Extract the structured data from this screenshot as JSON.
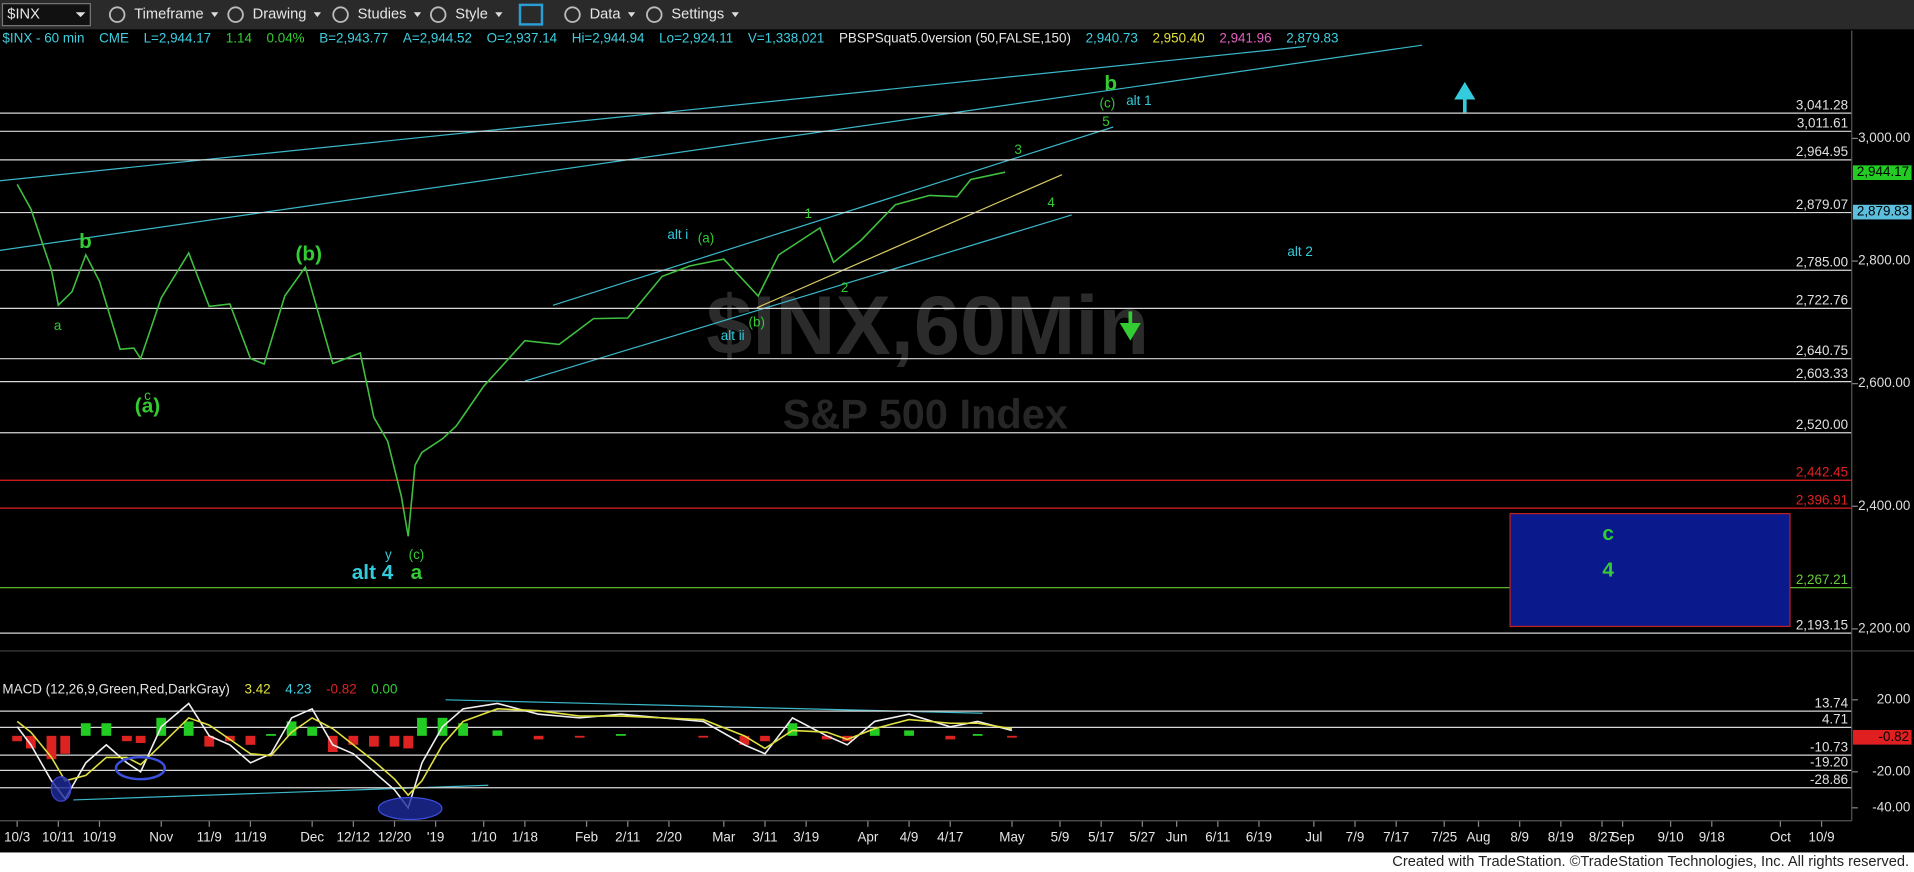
{
  "toolbar": {
    "symbol": "$INX",
    "menus": [
      "Timeframe",
      "Drawing",
      "Studies",
      "Style",
      "Data",
      "Settings"
    ]
  },
  "chart_data": [
    {
      "type": "line",
      "watermark": "$INX,60Min",
      "subtitle": "S&P 500 Index",
      "header": [
        {
          "text": "$INX - 60 min",
          "color": "#3ecfe0"
        },
        {
          "text": "CME",
          "color": "#3ecfe0"
        },
        {
          "text": "L=2,944.17",
          "color": "#3ecfe0"
        },
        {
          "text": "1.14",
          "color": "#33cc33"
        },
        {
          "text": "0.04%",
          "color": "#33cc33"
        },
        {
          "text": "B=2,943.77",
          "color": "#3ecfe0"
        },
        {
          "text": "A=2,944.52",
          "color": "#3ecfe0"
        },
        {
          "text": "O=2,937.14",
          "color": "#3ecfe0"
        },
        {
          "text": "Hi=2,944.94",
          "color": "#3ecfe0"
        },
        {
          "text": "Lo=2,924.11",
          "color": "#3ecfe0"
        },
        {
          "text": "V=1,338,021",
          "color": "#3ecfe0"
        },
        {
          "text": "PBSPSquat5.0version (50,FALSE,150)",
          "color": "#e6e6e6"
        },
        {
          "text": "2,940.73",
          "color": "#3ecfe0"
        },
        {
          "text": "2,950.40",
          "color": "#e0e040"
        },
        {
          "text": "2,941.96",
          "color": "#e060c0"
        },
        {
          "text": "2,879.83",
          "color": "#3ecfe0"
        }
      ],
      "x": [
        0,
        2,
        5,
        6,
        8,
        10,
        12,
        15,
        17,
        18,
        21,
        25,
        28,
        31,
        34,
        36,
        39,
        42,
        46,
        47,
        50,
        52,
        54,
        56,
        57,
        58,
        59,
        62,
        64,
        68,
        74,
        79,
        84,
        89,
        94,
        98,
        103,
        108,
        111,
        117,
        119,
        123,
        128,
        133,
        137,
        139,
        144
      ],
      "values": [
        2925,
        2885,
        2785,
        2728,
        2750,
        2810,
        2767,
        2656,
        2658,
        2641,
        2740,
        2813,
        2726,
        2730,
        2641,
        2632,
        2743,
        2790,
        2633,
        2637,
        2650,
        2545,
        2506,
        2416,
        2351,
        2467,
        2488,
        2510,
        2531,
        2596,
        2670,
        2664,
        2706,
        2707,
        2775,
        2792,
        2803,
        2743,
        2810,
        2854,
        2798,
        2834,
        2892,
        2907,
        2905,
        2933,
        2945
      ],
      "color": "#3fbf3f",
      "xlim": [
        -2.5,
        267.4
      ],
      "xticks": [
        {
          "value": 0,
          "label": "10/3"
        },
        {
          "value": 6,
          "label": "10/11"
        },
        {
          "value": 12,
          "label": "10/19"
        },
        {
          "value": 21,
          "label": "Nov"
        },
        {
          "value": 28,
          "label": "11/9"
        },
        {
          "value": 34,
          "label": "11/19"
        },
        {
          "value": 43,
          "label": "Dec"
        },
        {
          "value": 49,
          "label": "12/12"
        },
        {
          "value": 55,
          "label": "12/20"
        },
        {
          "value": 61,
          "label": "'19"
        },
        {
          "value": 68,
          "label": "1/10"
        },
        {
          "value": 74,
          "label": "1/18"
        },
        {
          "value": 83,
          "label": "Feb"
        },
        {
          "value": 89,
          "label": "2/11"
        },
        {
          "value": 95,
          "label": "2/20"
        },
        {
          "value": 103,
          "label": "Mar"
        },
        {
          "value": 109,
          "label": "3/11"
        },
        {
          "value": 115,
          "label": "3/19"
        },
        {
          "value": 124,
          "label": "Apr"
        },
        {
          "value": 130,
          "label": "4/9"
        },
        {
          "value": 136,
          "label": "4/17"
        },
        {
          "value": 145,
          "label": "May"
        },
        {
          "value": 152,
          "label": "5/9"
        },
        {
          "value": 158,
          "label": "5/17"
        },
        {
          "value": 164,
          "label": "5/27"
        },
        {
          "value": 169,
          "label": "Jun"
        },
        {
          "value": 175,
          "label": "6/11"
        },
        {
          "value": 181,
          "label": "6/19"
        },
        {
          "value": 189,
          "label": "Jul"
        },
        {
          "value": 195,
          "label": "7/9"
        },
        {
          "value": 201,
          "label": "7/17"
        },
        {
          "value": 208,
          "label": "7/25"
        },
        {
          "value": 213,
          "label": "Aug"
        },
        {
          "value": 219,
          "label": "8/9"
        },
        {
          "value": 225,
          "label": "8/19"
        },
        {
          "value": 231,
          "label": "8/27"
        },
        {
          "value": 234,
          "label": "Sep"
        },
        {
          "value": 241,
          "label": "9/10"
        },
        {
          "value": 247,
          "label": "9/18"
        },
        {
          "value": 257,
          "label": "Oct"
        },
        {
          "value": 263,
          "label": "10/9"
        }
      ],
      "ylim": [
        2170,
        3176
      ],
      "yticks": [
        {
          "value": 3000,
          "label": "3,000.00"
        },
        {
          "value": 2800,
          "label": "2,800.00"
        },
        {
          "value": 2600,
          "label": "2,600.00"
        },
        {
          "value": 2400,
          "label": "2,400.00"
        },
        {
          "value": 2200,
          "label": "2,200.00"
        }
      ],
      "levels": [
        {
          "value": 3041.28,
          "label": "3,041.28",
          "color": "#d8d8d8"
        },
        {
          "value": 3011.61,
          "label": "3,011.61",
          "color": "#d8d8d8"
        },
        {
          "value": 2964.95,
          "label": "2,964.95",
          "color": "#d8d8d8"
        },
        {
          "value": 2879.07,
          "label": "2,879.07",
          "color": "#d8d8d8"
        },
        {
          "value": 2785,
          "label": "2,785.00",
          "color": "#d8d8d8"
        },
        {
          "value": 2722.76,
          "label": "2,722.76",
          "color": "#d8d8d8"
        },
        {
          "value": 2640.75,
          "label": "2,640.75",
          "color": "#d8d8d8"
        },
        {
          "value": 2603.33,
          "label": "2,603.33",
          "color": "#d8d8d8"
        },
        {
          "value": 2520,
          "label": "2,520.00",
          "color": "#d8d8d8"
        },
        {
          "value": 2442.45,
          "label": "2,442.45",
          "color": "#e02020"
        },
        {
          "value": 2396.91,
          "label": "2,396.91",
          "color": "#e02020"
        },
        {
          "value": 2267.21,
          "label": "2,267.21",
          "color": "#66cc33"
        },
        {
          "value": 2193.15,
          "label": "2,193.15",
          "color": "#d8d8d8"
        }
      ],
      "badges": [
        {
          "value": 2944.17,
          "label": "2,944.17",
          "color": "#22cc22"
        },
        {
          "value": 2879.83,
          "label": "2,879.83",
          "color": "#5bc0de"
        }
      ],
      "zone": {
        "x": [
          217.6,
          258.4
        ],
        "y": [
          2204,
          2388
        ],
        "color": "#0a1a8c"
      },
      "annotations": [
        {
          "text": "b",
          "x": 159.4,
          "y": 3088,
          "color": "#33cc33"
        },
        {
          "text": "(c)",
          "x": 158.9,
          "y": 3056,
          "color": "#33cc33"
        },
        {
          "text": "5",
          "x": 158.7,
          "y": 3026,
          "color": "#33cc33"
        },
        {
          "text": "alt 1",
          "x": 163.5,
          "y": 3060,
          "color": "#33ccdd"
        },
        {
          "text": "3",
          "x": 145.9,
          "y": 2980,
          "color": "#33cc33"
        },
        {
          "text": "4",
          "x": 150.7,
          "y": 2894,
          "color": "#33cc33"
        },
        {
          "text": "alt 2",
          "x": 187,
          "y": 2814,
          "color": "#33ccdd"
        },
        {
          "text": "alt i",
          "x": 96.3,
          "y": 2842,
          "color": "#33ccdd"
        },
        {
          "text": "(a)",
          "x": 100.4,
          "y": 2836,
          "color": "#33cc33"
        },
        {
          "text": "1",
          "x": 115.3,
          "y": 2876,
          "color": "#33cc33"
        },
        {
          "text": "2",
          "x": 120.6,
          "y": 2755,
          "color": "#33cc33"
        },
        {
          "text": "(b)",
          "x": 107.8,
          "y": 2699,
          "color": "#33cc33"
        },
        {
          "text": "alt ii",
          "x": 104.3,
          "y": 2677,
          "color": "#33ccdd"
        },
        {
          "text": "b",
          "x": 9.96,
          "y": 2830,
          "color": "#33cc33"
        },
        {
          "text": "a",
          "x": 5.9,
          "y": 2693,
          "color": "#33cc33"
        },
        {
          "text": "c",
          "x": 19,
          "y": 2579,
          "color": "#33cc33"
        },
        {
          "text": "(a)",
          "x": 19,
          "y": 2562,
          "color": "#33cc33"
        },
        {
          "text": "(b)",
          "x": 42.5,
          "y": 2810,
          "color": "#33cc33"
        },
        {
          "text": "y",
          "x": 54.1,
          "y": 2320,
          "color": "#33ccdd"
        },
        {
          "text": "alt 4",
          "x": 51.8,
          "y": 2290,
          "color": "#33ccdd"
        },
        {
          "text": "(c)",
          "x": 58.2,
          "y": 2320,
          "color": "#33cc33"
        },
        {
          "text": "a",
          "x": 58.2,
          "y": 2290,
          "color": "#33cc33"
        },
        {
          "text": "c",
          "x": 231.9,
          "y": 2354,
          "color": "#33cc33"
        },
        {
          "text": "4",
          "x": 231.9,
          "y": 2294,
          "color": "#33cc33"
        }
      ]
    },
    {
      "type": "line",
      "title": "MACD (12,26,9,Green,Red,DarkGray)",
      "header": [
        {
          "text": "3.42",
          "color": "#e0e040"
        },
        {
          "text": "4.23",
          "color": "#3ecfe0"
        },
        {
          "text": "-0.82",
          "color": "#e02020"
        },
        {
          "text": "0.00",
          "color": "#33cc33"
        }
      ],
      "x": [
        0,
        2,
        5,
        7,
        10,
        13,
        16,
        18,
        21,
        25,
        28,
        31,
        34,
        37,
        40,
        43,
        46,
        49,
        52,
        55,
        57,
        59,
        62,
        65,
        70,
        76,
        82,
        88,
        94,
        100,
        106,
        109,
        113,
        118,
        121,
        125,
        130,
        136,
        140,
        145
      ],
      "series": [
        {
          "color": "#f0f0f0",
          "values": [
            5,
            -5,
            -25,
            -35,
            -15,
            -5,
            -15,
            -20,
            5,
            18,
            0,
            -5,
            -15,
            -10,
            10,
            15,
            -5,
            -10,
            -20,
            -30,
            -40,
            -15,
            5,
            15,
            18,
            12,
            10,
            12,
            10,
            8,
            -5,
            -10,
            10,
            0,
            -5,
            8,
            12,
            5,
            8,
            3
          ]
        },
        {
          "color": "#e0e040",
          "values": [
            8,
            2,
            -12,
            -25,
            -22,
            -12,
            -12,
            -16,
            -5,
            10,
            6,
            -2,
            -10,
            -11,
            2,
            10,
            4,
            -5,
            -14,
            -24,
            -33,
            -25,
            -5,
            8,
            15,
            14,
            11,
            11,
            10,
            9,
            0,
            -7,
            3,
            2,
            -2,
            4,
            9,
            7,
            7,
            4
          ]
        }
      ],
      "histogram": {
        "colors": [
          "#22cc22",
          "#dd2222"
        ],
        "values": [
          -3,
          -7,
          -13,
          -10,
          7,
          7,
          -3,
          -4,
          10,
          8,
          -6,
          -3,
          -5,
          1,
          8,
          5,
          -9,
          -5,
          -6,
          -6,
          -7,
          10,
          10,
          7,
          3,
          -2,
          -1,
          1,
          0,
          -1,
          -5,
          -3,
          7,
          -2,
          -3,
          4,
          3,
          -2,
          1,
          -1
        ]
      },
      "ylim": [
        -45.8,
        42.4
      ],
      "yticks": [
        {
          "value": 20,
          "label": "20.00"
        },
        {
          "value": -20,
          "label": "-20.00"
        },
        {
          "value": -40,
          "label": "-40.00"
        }
      ],
      "levels": [
        {
          "value": 13.74,
          "label": "13.74",
          "color": "#d8d8d8"
        },
        {
          "value": 4.71,
          "label": "4.71",
          "color": "#d8d8d8"
        },
        {
          "value": -10.73,
          "label": "-10.73",
          "color": "#d8d8d8"
        },
        {
          "value": -19.2,
          "label": "-19.20",
          "color": "#d8d8d8"
        },
        {
          "value": -28.86,
          "label": "-28.86",
          "color": "#d8d8d8"
        }
      ],
      "badges": [
        {
          "value": -0.82,
          "label": "-0.82",
          "color": "#e02020"
        }
      ]
    }
  ],
  "footer": "Created with TradeStation. ©TradeStation Technologies, Inc. All rights reserved."
}
